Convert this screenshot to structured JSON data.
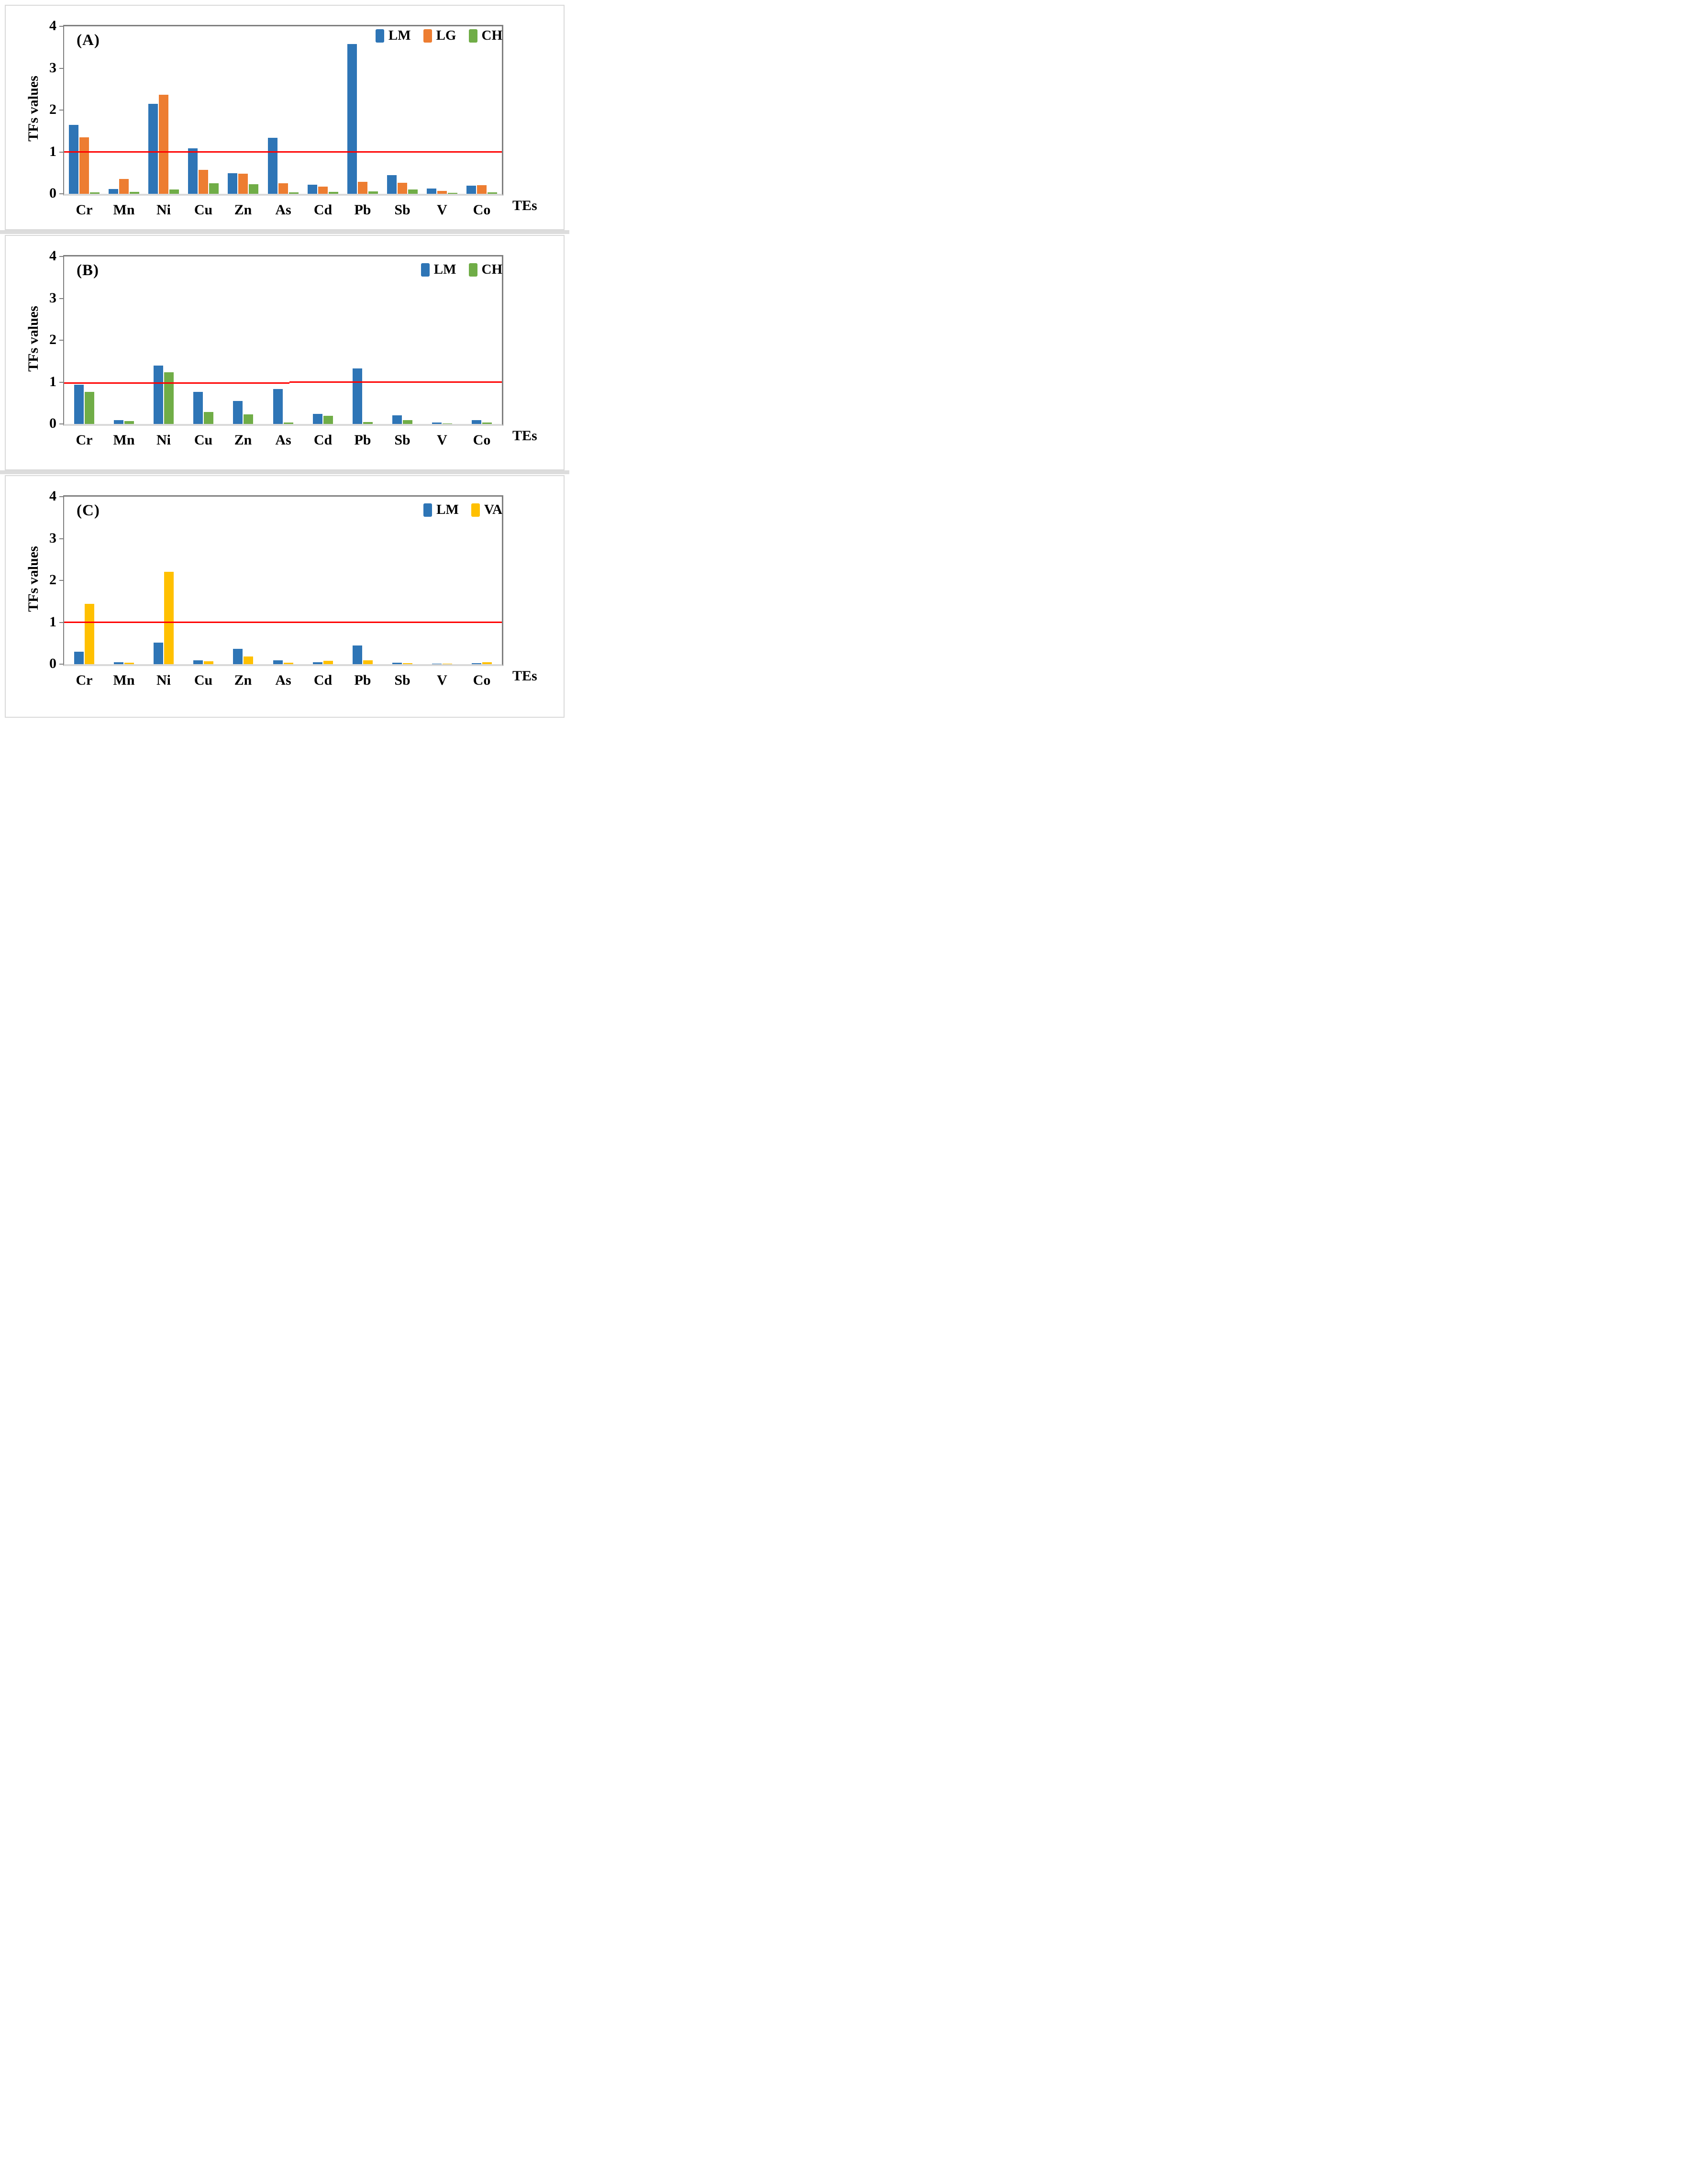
{
  "colors": {
    "LM": "#2E75B6",
    "LG": "#ED7D31",
    "CH": "#70AD47",
    "VA": "#FFC000",
    "ref_line": "#FF0000",
    "axis_gray": "#808080",
    "baseline_gray": "#D9D9D9",
    "panel_border": "#D9D9D9"
  },
  "chart_data": [
    {
      "type": "bar",
      "id": "a",
      "panel_label": "(A)",
      "title": "",
      "ylabel": "TFs values",
      "xlabel": "TEs",
      "ylim": [
        0,
        4
      ],
      "yticks": [
        "0",
        "1",
        "2",
        "3",
        "4"
      ],
      "grid": false,
      "legend_position": "top-right",
      "legend": [
        "LM",
        "LG",
        "CH"
      ],
      "categories": [
        "Cr",
        "Mn",
        "Ni",
        "Cu",
        "Zn",
        "As",
        "Cd",
        "Pb",
        "Sb",
        "V",
        "Co"
      ],
      "series": [
        {
          "name": "LM",
          "values": [
            1.65,
            0.11,
            2.15,
            1.08,
            0.49,
            1.34,
            0.22,
            3.58,
            0.44,
            0.13,
            0.19
          ]
        },
        {
          "name": "LG",
          "values": [
            1.35,
            0.35,
            2.36,
            0.57,
            0.48,
            0.25,
            0.17,
            0.28,
            0.26,
            0.07,
            0.21
          ]
        },
        {
          "name": "CH",
          "values": [
            0.03,
            0.05,
            0.1,
            0.25,
            0.23,
            0.03,
            0.05,
            0.06,
            0.1,
            0.02,
            0.03
          ]
        }
      ],
      "ref_segments": [
        {
          "from": 0,
          "to": 1,
          "value": 1.0
        }
      ]
    },
    {
      "type": "bar",
      "id": "b",
      "panel_label": "(B)",
      "title": "",
      "ylabel": "TFs values",
      "xlabel": "TEs",
      "ylim": [
        0,
        4
      ],
      "yticks": [
        "0",
        "1",
        "2",
        "3",
        "4"
      ],
      "grid": false,
      "legend_position": "top-right",
      "legend": [
        "LM",
        "CH"
      ],
      "categories": [
        "Cr",
        "Mn",
        "Ni",
        "Cu",
        "Zn",
        "As",
        "Cd",
        "Pb",
        "Sb",
        "V",
        "Co"
      ],
      "series": [
        {
          "name": "LM",
          "values": [
            0.94,
            0.09,
            1.39,
            0.76,
            0.55,
            0.83,
            0.24,
            1.33,
            0.21,
            0.03,
            0.09
          ]
        },
        {
          "name": "CH",
          "values": [
            0.76,
            0.07,
            1.23,
            0.28,
            0.23,
            0.03,
            0.19,
            0.05,
            0.09,
            0.01,
            0.03
          ]
        }
      ],
      "ref_segments": [
        {
          "from": 0,
          "to": 0.515,
          "value": 0.98
        },
        {
          "from": 0.515,
          "to": 1,
          "value": 1.0
        }
      ]
    },
    {
      "type": "bar",
      "id": "c",
      "panel_label": "(C)",
      "title": "",
      "ylabel": "TFs values",
      "xlabel": "TEs",
      "ylim": [
        0,
        4
      ],
      "yticks": [
        "0",
        "1",
        "2",
        "3",
        "4"
      ],
      "grid": false,
      "legend_position": "top-right",
      "legend": [
        "LM",
        "VA"
      ],
      "categories": [
        "Cr",
        "Mn",
        "Ni",
        "Cu",
        "Zn",
        "As",
        "Cd",
        "Pb",
        "Sb",
        "V",
        "Co"
      ],
      "series": [
        {
          "name": "LM",
          "values": [
            0.3,
            0.04,
            0.51,
            0.09,
            0.37,
            0.09,
            0.05,
            0.45,
            0.03,
            0.01,
            0.02
          ]
        },
        {
          "name": "VA",
          "values": [
            1.44,
            0.03,
            2.21,
            0.07,
            0.18,
            0.03,
            0.08,
            0.09,
            0.02,
            0.01,
            0.04
          ]
        }
      ],
      "ref_segments": [
        {
          "from": 0,
          "to": 1,
          "value": 1.0
        }
      ]
    }
  ]
}
